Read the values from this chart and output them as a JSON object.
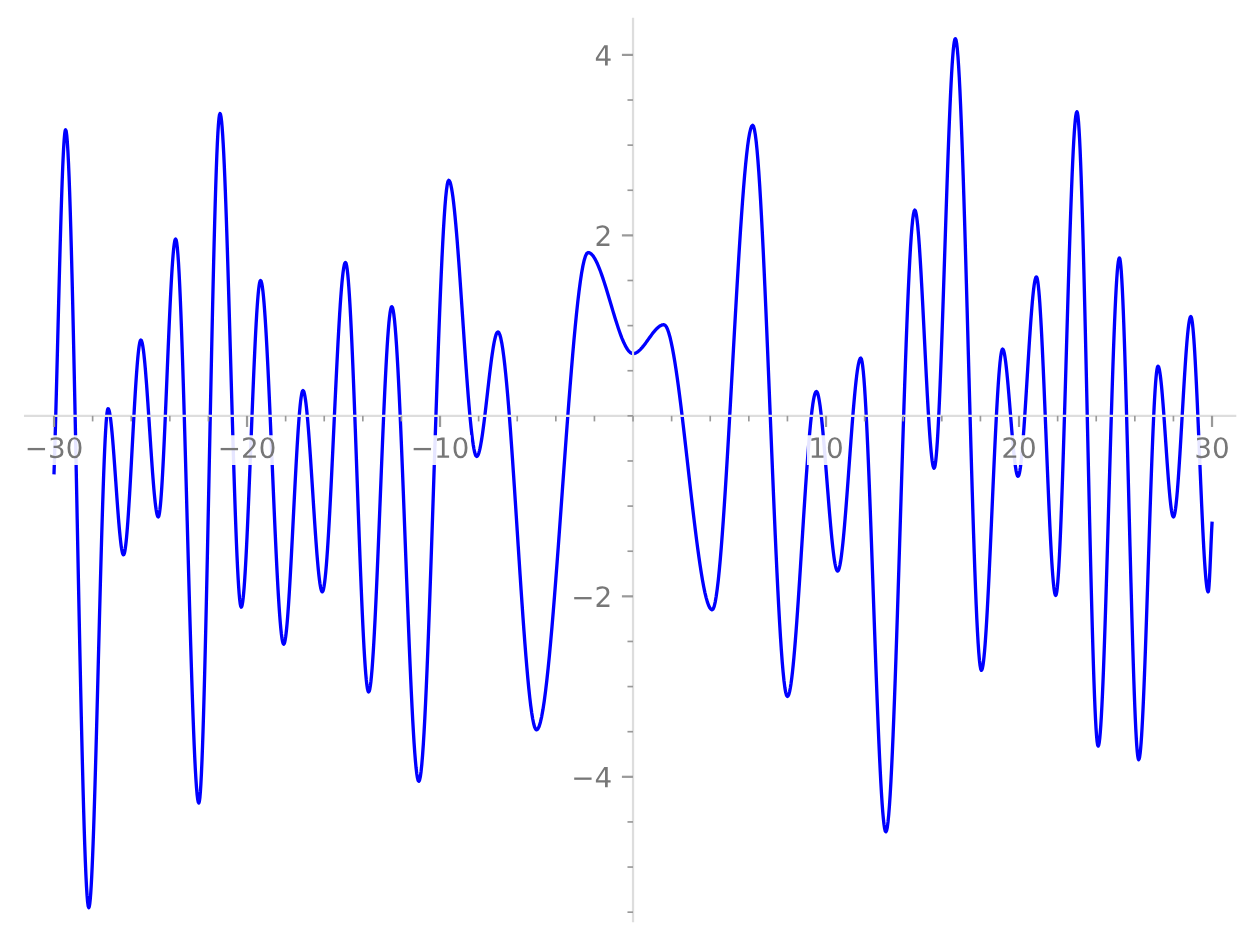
{
  "chart_data": {
    "type": "line",
    "series": [
      {
        "color": "#0000ff",
        "x": [
          -30.0,
          -29.4,
          -28.2,
          -27.2,
          -26.4,
          -25.5,
          -24.6,
          -23.7,
          -22.5,
          -21.4,
          -20.3,
          -19.3,
          -18.1,
          -17.1,
          -16.1,
          -14.9,
          -13.7,
          -12.5,
          -11.1,
          -9.55,
          -8.1,
          -7.0,
          -5.0,
          -2.33,
          0.0,
          1.6,
          4.1,
          6.2,
          8.0,
          9.5,
          10.6,
          11.8,
          13.1,
          14.6,
          15.6,
          16.7,
          18.05,
          19.15,
          19.95,
          20.9,
          21.9,
          23.0,
          24.1,
          25.2,
          26.2,
          27.2,
          28.0,
          28.9,
          29.8,
          30.0
        ],
        "values": [
          -0.63,
          3.17,
          -5.45,
          0.08,
          -1.54,
          0.84,
          -1.12,
          1.96,
          -4.29,
          3.35,
          -2.12,
          1.5,
          -2.53,
          0.28,
          -1.95,
          1.7,
          -3.06,
          1.21,
          -4.05,
          2.61,
          -0.45,
          0.93,
          -3.48,
          1.81,
          0.69,
          1.01,
          -2.15,
          3.22,
          -3.11,
          0.27,
          -1.72,
          0.64,
          -4.61,
          2.28,
          -0.58,
          4.18,
          -2.82,
          0.74,
          -0.67,
          1.54,
          -1.99,
          3.37,
          -3.66,
          1.75,
          -3.81,
          0.55,
          -1.12,
          1.1,
          -1.95,
          -1.19
        ]
      }
    ],
    "xlim": [
      -31.5,
      31.2
    ],
    "ylim": [
      -5.6,
      4.4
    ],
    "xticks": [
      -30,
      -20,
      -10,
      10,
      20,
      30
    ],
    "yticks": [
      -4,
      -2,
      2,
      4
    ],
    "grid": false,
    "legend": false,
    "marker": "none",
    "line_style": "solid"
  }
}
